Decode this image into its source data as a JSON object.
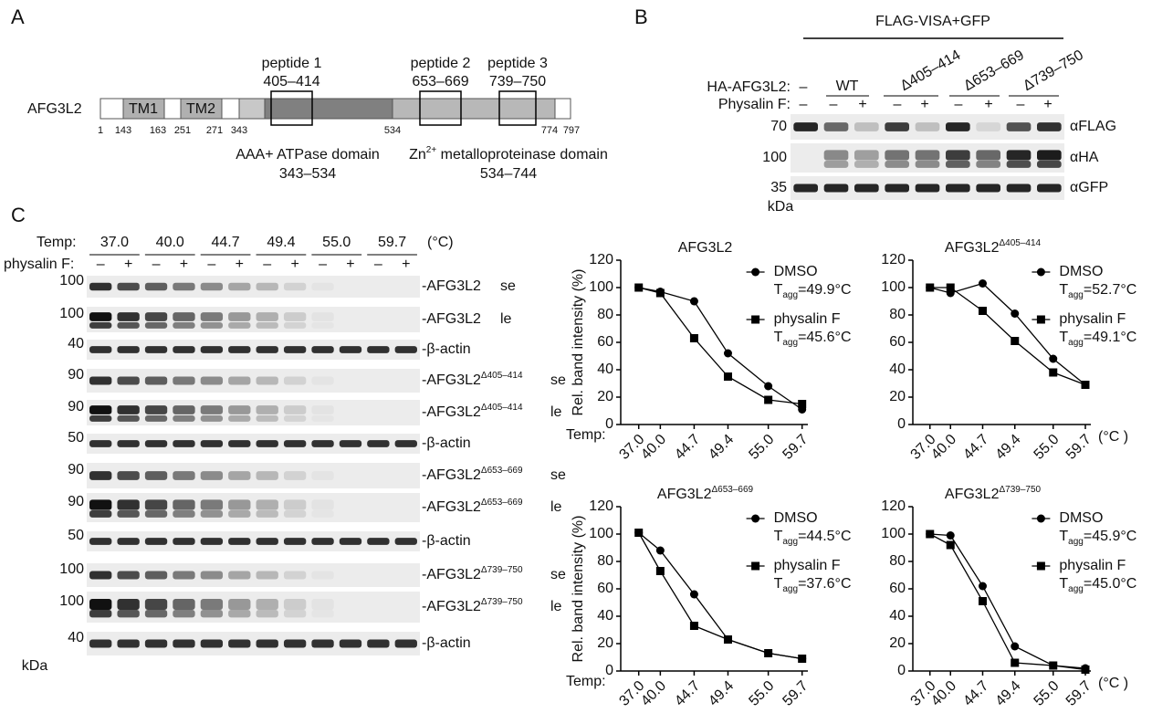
{
  "panel_a": {
    "label": "A",
    "protein": "AFG3L2",
    "tm": [
      "TM1",
      "TM2"
    ],
    "positions": [
      "1",
      "143",
      "163",
      "251",
      "271",
      "343",
      "534",
      "774",
      "797"
    ],
    "peptides": [
      {
        "name": "peptide 1",
        "range": "405–414"
      },
      {
        "name": "peptide 2",
        "range": "653–669"
      },
      {
        "name": "peptide 3",
        "range": "739–750"
      }
    ],
    "domains": [
      {
        "name": [
          "AAA+ ATPase domain"
        ],
        "range": "343–534"
      },
      {
        "name": [
          "Zn",
          "2+",
          " metalloproteinase domain"
        ],
        "range": "534–744"
      }
    ]
  },
  "panel_b": {
    "label": "B",
    "header": "FLAG-VISA+GFP",
    "row_labels": [
      "HA-AFG3L2:",
      "Physalin F:"
    ],
    "constructs": [
      "–",
      "WT",
      "Δ405–414",
      "Δ653–669",
      "Δ739–750"
    ],
    "treatment": [
      "–",
      "–",
      "+",
      "–",
      "+",
      "–",
      "+",
      "–",
      "+"
    ],
    "blots": [
      {
        "marker": "70",
        "antibody": "αFLAG"
      },
      {
        "marker": "100",
        "antibody": "αHA"
      },
      {
        "marker": "35",
        "antibody": "αGFP"
      }
    ],
    "unit": "kDa"
  },
  "panel_c": {
    "label": "C",
    "temp_label": "Temp:",
    "temps": [
      "37.0",
      "40.0",
      "44.7",
      "49.4",
      "55.0",
      "59.7"
    ],
    "temp_unit": "(°C)",
    "treatment_label": "physalin F:",
    "treatment": [
      "–",
      "+"
    ],
    "blots": [
      {
        "marker": "100",
        "name": "-AFG3L2",
        "exposure": "se"
      },
      {
        "marker": "100",
        "name": "-AFG3L2",
        "exposure": "le"
      },
      {
        "marker": "40",
        "name": "-β-actin"
      },
      {
        "marker": "90",
        "name": "-AFG3L2",
        "sup": "Δ405–414",
        "exposure": "se"
      },
      {
        "marker": "90",
        "name": "-AFG3L2",
        "sup": "Δ405–414",
        "exposure": "le"
      },
      {
        "marker": "50",
        "name": "-β-actin"
      },
      {
        "marker": "90",
        "name": "-AFG3L2",
        "sup": "Δ653–669",
        "exposure": "se"
      },
      {
        "marker": "90",
        "name": "-AFG3L2",
        "sup": "Δ653–669",
        "exposure": "le"
      },
      {
        "marker": "50",
        "name": "-β-actin"
      },
      {
        "marker": "100",
        "name": "-AFG3L2",
        "sup": "Δ739–750",
        "exposure": "se"
      },
      {
        "marker": "100",
        "name": "-AFG3L2",
        "sup": "Δ739–750",
        "exposure": "le"
      },
      {
        "marker": "40",
        "name": "-β-actin"
      }
    ],
    "unit": "kDa"
  },
  "chart_data": [
    {
      "type": "line",
      "title": "AFG3L2",
      "ylabel": "Rel. band intensity (%)",
      "x_label": "Temp:",
      "x": [
        37,
        40,
        44.7,
        49.4,
        55,
        59.7
      ],
      "xlim": [
        34.5,
        60.5
      ],
      "xticks": [
        {
          "value": 37,
          "label": "37.0"
        },
        {
          "value": 40,
          "label": "40.0"
        },
        44.7,
        49.4,
        {
          "value": 55,
          "label": "55.0"
        },
        59.7
      ],
      "ylim": [
        0,
        120
      ],
      "yticks": [
        0,
        20,
        40,
        60,
        80,
        100,
        120
      ],
      "legend": "upper right",
      "series": [
        {
          "name": "DMSO",
          "marker": "circle",
          "color": "#000000",
          "tagg": [
            "T",
            "agg",
            "=49.9°C"
          ],
          "values": [
            100,
            97,
            90,
            52,
            28,
            11
          ]
        },
        {
          "name": "physalin F",
          "marker": "square",
          "color": "#000000",
          "tagg": [
            "T",
            "agg",
            "=45.6°C"
          ],
          "values": [
            100,
            96,
            63,
            35,
            18,
            15
          ]
        }
      ]
    },
    {
      "type": "line",
      "title": "AFG3L2",
      "title_sup": "Δ405–414",
      "x_unit": "(°C )",
      "x": [
        37,
        40,
        44.7,
        49.4,
        55,
        59.7
      ],
      "xlim": [
        34.5,
        60.5
      ],
      "xticks": [
        {
          "value": 37,
          "label": "37.0"
        },
        {
          "value": 40,
          "label": "40.0"
        },
        44.7,
        49.4,
        {
          "value": 55,
          "label": "55.0"
        },
        59.7
      ],
      "ylim": [
        0,
        120
      ],
      "yticks": [
        0,
        20,
        40,
        60,
        80,
        100,
        120
      ],
      "legend": "upper right",
      "series": [
        {
          "name": "DMSO",
          "marker": "circle",
          "color": "#000000",
          "tagg": [
            "T",
            "agg",
            "=52.7°C"
          ],
          "values": [
            100,
            96,
            103,
            81,
            48,
            29
          ]
        },
        {
          "name": "physalin F",
          "marker": "square",
          "color": "#000000",
          "tagg": [
            "T",
            "agg",
            "=49.1°C"
          ],
          "values": [
            100,
            100,
            83,
            61,
            38,
            29
          ]
        }
      ]
    },
    {
      "type": "line",
      "title": "AFG3L2",
      "title_sup": "Δ653–669",
      "ylabel": "Rel. band intensity (%)",
      "x_label": "Temp:",
      "x": [
        37,
        40,
        44.7,
        49.4,
        55,
        59.7
      ],
      "xlim": [
        34.5,
        60.5
      ],
      "xticks": [
        {
          "value": 37,
          "label": "37.0"
        },
        {
          "value": 40,
          "label": "40.0"
        },
        44.7,
        49.4,
        {
          "value": 55,
          "label": "55.0"
        },
        59.7
      ],
      "ylim": [
        0,
        120
      ],
      "yticks": [
        0,
        20,
        40,
        60,
        80,
        100,
        120
      ],
      "legend": "upper right",
      "series": [
        {
          "name": "DMSO",
          "marker": "circle",
          "color": "#000000",
          "tagg": [
            "T",
            "agg",
            "=44.5°C"
          ],
          "values": [
            101,
            88,
            56,
            23,
            13,
            9
          ]
        },
        {
          "name": "physalin F",
          "marker": "square",
          "color": "#000000",
          "tagg": [
            "T",
            "agg",
            "=37.6°C"
          ],
          "values": [
            101,
            73,
            33,
            23,
            13,
            9
          ]
        }
      ]
    },
    {
      "type": "line",
      "title": "AFG3L2",
      "title_sup": "Δ739–750",
      "x_unit": "(°C )",
      "x": [
        37,
        40,
        44.7,
        49.4,
        55,
        59.7
      ],
      "xlim": [
        34.5,
        60.5
      ],
      "xticks": [
        {
          "value": 37,
          "label": "37.0"
        },
        {
          "value": 40,
          "label": "40.0"
        },
        44.7,
        49.4,
        {
          "value": 55,
          "label": "55.0"
        },
        59.7
      ],
      "ylim": [
        0,
        120
      ],
      "yticks": [
        0,
        20,
        40,
        60,
        80,
        100,
        120
      ],
      "legend": "upper right",
      "series": [
        {
          "name": "DMSO",
          "marker": "circle",
          "color": "#000000",
          "tagg": [
            "T",
            "agg",
            "=45.9°C"
          ],
          "values": [
            100,
            99,
            62,
            18,
            4,
            2
          ]
        },
        {
          "name": "physalin F",
          "marker": "square",
          "color": "#000000",
          "tagg": [
            "T",
            "agg",
            "=45.0°C"
          ],
          "values": [
            100,
            92,
            51,
            6,
            4,
            1
          ]
        }
      ]
    }
  ]
}
